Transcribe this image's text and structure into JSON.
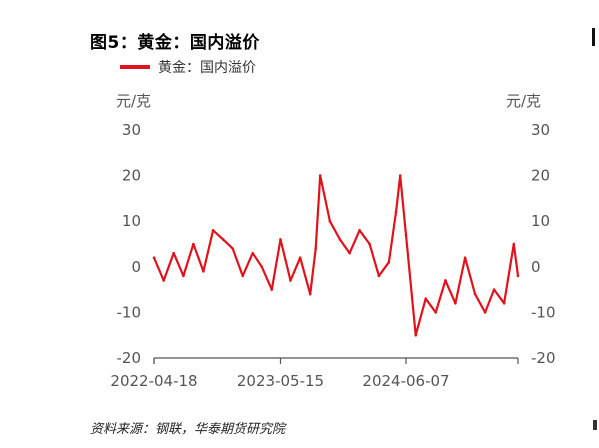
{
  "title": "图5：黄金：国内溢价",
  "unit_left": "元/克",
  "unit_right": "元/克",
  "source": "资料来源：钢联，华泰期货研究院",
  "colors": {
    "series": "#e0121b",
    "axis": "#555555"
  },
  "chart_data": {
    "type": "line",
    "title": "图5：黄金：国内溢价",
    "ylabel": "元/克",
    "ylim": [
      -20,
      30
    ],
    "yticks": [
      30,
      20,
      10,
      0,
      -10,
      -20
    ],
    "y_tick_labels": [
      "30",
      "20",
      "10",
      "0",
      "-10",
      "-20"
    ],
    "x_tick_labels": [
      "2022-04-18",
      "2023-05-15",
      "2024-06-07"
    ],
    "x_range": [
      "2022-04-18",
      "2025-05-20"
    ],
    "grid": false,
    "legend": "top-left",
    "series": [
      {
        "name": "黄金：国内溢价",
        "x": [
          "2022-04-18",
          "2022-05-18",
          "2022-06-18",
          "2022-07-18",
          "2022-08-18",
          "2022-09-18",
          "2022-10-18",
          "2022-11-18",
          "2022-12-18",
          "2023-01-18",
          "2023-02-18",
          "2023-03-18",
          "2023-04-18",
          "2023-05-15",
          "2023-06-15",
          "2023-07-15",
          "2023-08-15",
          "2023-09-01",
          "2023-09-15",
          "2023-10-15",
          "2023-11-15",
          "2023-12-15",
          "2024-01-15",
          "2024-02-15",
          "2024-03-15",
          "2024-04-15",
          "2024-05-07",
          "2024-05-20",
          "2024-06-07",
          "2024-07-07",
          "2024-08-07",
          "2024-09-07",
          "2024-10-07",
          "2024-11-07",
          "2024-12-07",
          "2025-01-07",
          "2025-02-07",
          "2025-03-07",
          "2025-04-07",
          "2025-05-07",
          "2025-05-20"
        ],
        "values": [
          2,
          -3,
          3,
          -2,
          5,
          -1,
          8,
          6,
          4,
          -2,
          3,
          0,
          -5,
          6,
          -3,
          2,
          -6,
          4,
          20,
          10,
          6,
          3,
          8,
          5,
          -2,
          1,
          12,
          20,
          7,
          -15,
          -7,
          -10,
          -3,
          -8,
          2,
          -6,
          -10,
          -5,
          -8,
          5,
          -2
        ]
      }
    ]
  }
}
